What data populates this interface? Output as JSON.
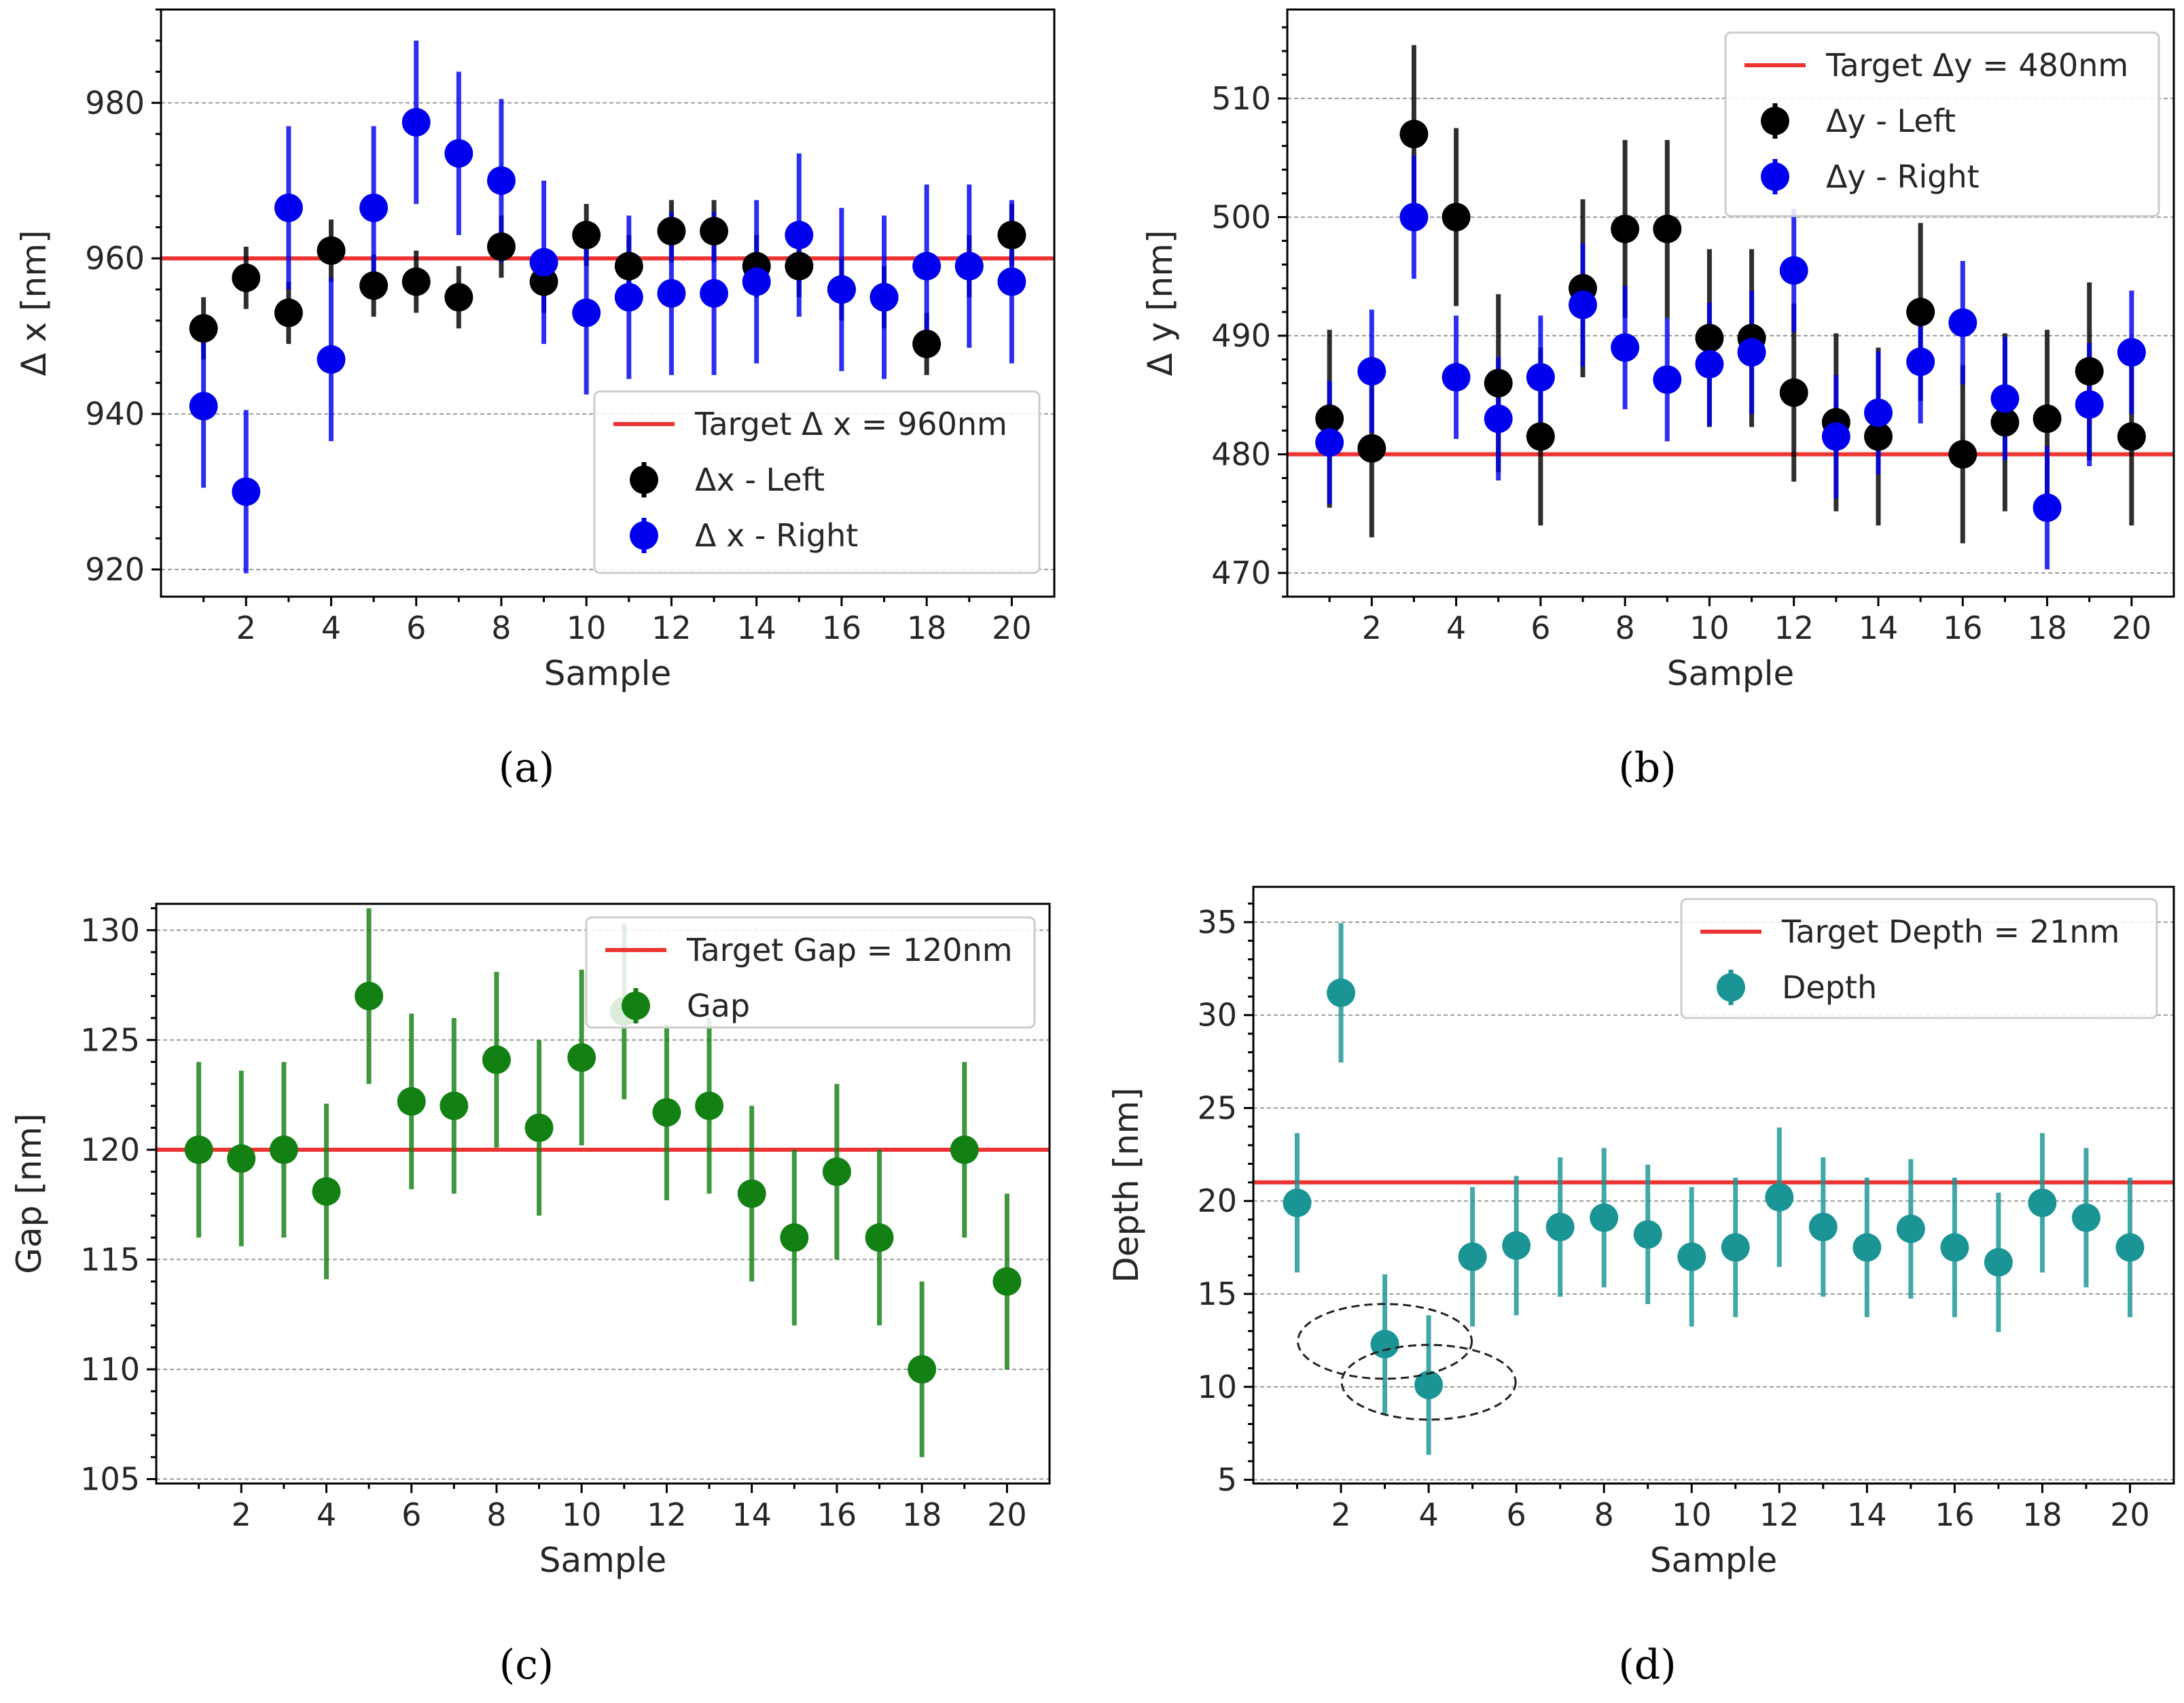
{
  "figure": {
    "captions": [
      "(a)",
      "(b)",
      "(c)",
      "(d)"
    ]
  },
  "chart_data": [
    {
      "id": "a",
      "type": "scatter",
      "caption_letter": "a",
      "xlabel": "Sample",
      "ylabel": "Δ x [nm]",
      "xlim": [
        0.0,
        21.0
      ],
      "ylim": [
        916.5,
        992.0
      ],
      "xticks": [
        2,
        4,
        6,
        8,
        10,
        12,
        14,
        16,
        18,
        20
      ],
      "yticks": [
        920,
        940,
        960,
        980
      ],
      "grid": "horizontal-dashed",
      "legend_position": "lower-right",
      "target": {
        "label": "Target Δ x = 960nm",
        "value": 960,
        "color": "#ee3333"
      },
      "series": [
        {
          "name": "Δx - Left",
          "color": "#000000",
          "x": [
            1,
            2,
            3,
            4,
            5,
            6,
            7,
            8,
            9,
            10,
            11,
            12,
            13,
            14,
            15,
            16,
            17,
            18,
            19,
            20
          ],
          "y": [
            951,
            957.5,
            953,
            961,
            956.5,
            957,
            955,
            961.5,
            957,
            963,
            959,
            963.5,
            963.5,
            959,
            959,
            956,
            955,
            949,
            959,
            963
          ],
          "err": [
            4,
            4,
            4,
            4,
            4,
            4,
            4,
            4,
            4,
            4,
            4,
            4,
            4,
            4,
            4,
            4,
            4,
            4,
            4,
            4
          ]
        },
        {
          "name": "Δ x - Right",
          "color": "#0000ee",
          "x": [
            1,
            2,
            3,
            4,
            5,
            6,
            7,
            8,
            9,
            10,
            11,
            12,
            13,
            14,
            15,
            16,
            17,
            18,
            19,
            20
          ],
          "y": [
            941,
            930,
            966.5,
            947,
            966.5,
            977.5,
            973.5,
            970,
            959.5,
            953,
            955,
            955.5,
            955.5,
            957,
            963,
            956,
            955,
            959,
            959,
            957
          ],
          "err": [
            10.5,
            10.5,
            10.5,
            10.5,
            10.5,
            10.5,
            10.5,
            10.5,
            10.5,
            10.5,
            10.5,
            10.5,
            10.5,
            10.5,
            10.5,
            10.5,
            10.5,
            10.5,
            10.5,
            10.5
          ]
        }
      ]
    },
    {
      "id": "b",
      "type": "scatter",
      "caption_letter": "b",
      "xlabel": "Sample",
      "ylabel": "Δ y [nm]",
      "xlim": [
        0.0,
        21.0
      ],
      "ylim": [
        468.0,
        517.5
      ],
      "xticks": [
        2,
        4,
        6,
        8,
        10,
        12,
        14,
        16,
        18,
        20
      ],
      "yticks": [
        470,
        480,
        490,
        500,
        510
      ],
      "grid": "horizontal-dashed",
      "legend_position": "upper-right",
      "target": {
        "label": "Target Δy = 480nm",
        "value": 480,
        "color": "#ee3333"
      },
      "series": [
        {
          "name": "Δy - Left",
          "color": "#000000",
          "x": [
            1,
            2,
            3,
            4,
            5,
            6,
            7,
            8,
            9,
            10,
            11,
            12,
            13,
            14,
            15,
            16,
            17,
            18,
            19,
            20
          ],
          "y": [
            483,
            480.5,
            507,
            500,
            486,
            481.5,
            494,
            499,
            499,
            489.8,
            489.8,
            485.2,
            482.7,
            481.5,
            492,
            480,
            482.7,
            483,
            487,
            481.5
          ],
          "err": [
            7.5,
            7.5,
            7.5,
            7.5,
            7.5,
            7.5,
            7.5,
            7.5,
            7.5,
            7.5,
            7.5,
            7.5,
            7.5,
            7.5,
            7.5,
            7.5,
            7.5,
            7.5,
            7.5,
            7.5
          ]
        },
        {
          "name": "Δy - Right",
          "color": "#0000ee",
          "x": [
            1,
            2,
            3,
            4,
            5,
            6,
            7,
            8,
            9,
            10,
            11,
            12,
            13,
            14,
            15,
            16,
            17,
            18,
            19,
            20
          ],
          "y": [
            481,
            487,
            500,
            486.5,
            483,
            486.5,
            492.6,
            489,
            486.3,
            487.6,
            488.6,
            495.5,
            481.5,
            483.5,
            487.8,
            491.1,
            484.7,
            475.5,
            484.2,
            488.6
          ],
          "err": [
            5.2,
            5.2,
            5.2,
            5.2,
            5.2,
            5.2,
            5.2,
            5.2,
            5.2,
            5.2,
            5.2,
            5.2,
            5.2,
            5.2,
            5.2,
            5.2,
            5.2,
            5.2,
            5.2,
            5.2
          ]
        }
      ]
    },
    {
      "id": "c",
      "type": "scatter",
      "caption_letter": "c",
      "xlabel": "Sample",
      "ylabel": "Gap [nm]",
      "xlim": [
        0.0,
        21.0
      ],
      "ylim": [
        104.8,
        131.2
      ],
      "xticks": [
        2,
        4,
        6,
        8,
        10,
        12,
        14,
        16,
        18,
        20
      ],
      "yticks": [
        105,
        110,
        115,
        120,
        125,
        130
      ],
      "grid": "horizontal-dashed",
      "legend_position": "upper-right",
      "target": {
        "label": "Target Gap = 120nm",
        "value": 120,
        "color": "#ee3333"
      },
      "series": [
        {
          "name": "Gap",
          "color": "#138013",
          "x": [
            1,
            2,
            3,
            4,
            5,
            6,
            7,
            8,
            9,
            10,
            11,
            12,
            13,
            14,
            15,
            16,
            17,
            18,
            19,
            20
          ],
          "y": [
            120,
            119.6,
            120,
            118.1,
            127,
            122.2,
            122,
            124.1,
            121,
            124.2,
            126.3,
            121.7,
            122,
            118,
            116,
            119,
            116,
            110,
            120,
            114
          ],
          "err": [
            4,
            4,
            4,
            4,
            4,
            4,
            4,
            4,
            4,
            4,
            4,
            4,
            4,
            4,
            4,
            4,
            4,
            4,
            4,
            4
          ]
        }
      ]
    },
    {
      "id": "d",
      "type": "scatter",
      "caption_letter": "d",
      "xlabel": "Sample",
      "ylabel": "Depth [nm]",
      "xlim": [
        0.0,
        21.0
      ],
      "ylim": [
        4.8,
        36.9
      ],
      "xticks": [
        2,
        4,
        6,
        8,
        10,
        12,
        14,
        16,
        18,
        20
      ],
      "yticks": [
        5,
        10,
        15,
        20,
        25,
        30,
        35
      ],
      "grid": "horizontal-dashed",
      "legend_position": "upper-right",
      "target": {
        "label": "Target Depth = 21nm",
        "value": 21,
        "color": "#ee3333"
      },
      "annotations": [
        "dashed ellipse around sample 3",
        "dashed ellipse around sample 4"
      ],
      "series": [
        {
          "name": "Depth",
          "color": "#1a9494",
          "x": [
            1,
            2,
            3,
            4,
            5,
            6,
            7,
            8,
            9,
            10,
            11,
            12,
            13,
            14,
            15,
            16,
            17,
            18,
            19,
            20
          ],
          "y": [
            19.9,
            31.2,
            12.3,
            10.1,
            17,
            17.6,
            18.6,
            19.1,
            18.2,
            17,
            17.5,
            20.2,
            18.6,
            17.5,
            18.5,
            17.5,
            16.7,
            19.9,
            19.1,
            17.5
          ],
          "err": [
            3.75,
            3.75,
            3.75,
            3.75,
            3.75,
            3.75,
            3.75,
            3.75,
            3.75,
            3.75,
            3.75,
            3.75,
            3.75,
            3.75,
            3.75,
            3.75,
            3.75,
            3.75,
            3.75,
            3.75
          ]
        }
      ]
    }
  ]
}
